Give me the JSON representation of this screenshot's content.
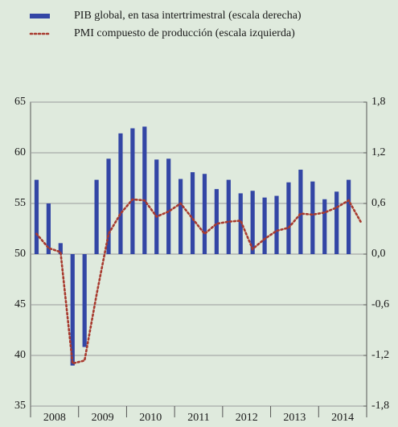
{
  "chart_data": {
    "type": "bar",
    "categories": [
      "2008",
      null,
      null,
      null,
      "2009",
      null,
      null,
      null,
      "2010",
      null,
      null,
      null,
      "2011",
      null,
      null,
      null,
      "2012",
      null,
      null,
      null,
      "2013",
      null,
      null,
      null,
      "2014",
      null,
      null,
      null
    ],
    "series": [
      {
        "name": "PIB global, en tasa intertrimestral (escala derecha)",
        "color": "#3346a5",
        "axis": "y2",
        "type": "bar",
        "values": [
          0.88,
          0.6,
          0.13,
          -1.32,
          -1.1,
          0.88,
          1.13,
          1.43,
          1.49,
          1.51,
          1.12,
          1.13,
          0.89,
          0.97,
          0.95,
          0.77,
          0.88,
          0.72,
          0.75,
          0.67,
          0.69,
          0.85,
          1.0,
          0.86,
          0.65,
          0.74,
          0.88,
          null
        ]
      },
      {
        "name": "PMI compuesto de producción (escala izquierda)",
        "color": "#a83a2e",
        "type": "line",
        "values": [
          52.0,
          50.6,
          50.2,
          39.2,
          39.5,
          46.0,
          52.0,
          54.0,
          55.4,
          55.3,
          53.7,
          54.2,
          55.0,
          53.5,
          52.0,
          53.0,
          53.2,
          53.3,
          50.5,
          51.5,
          52.3,
          52.6,
          54.0,
          53.9,
          54.1,
          54.6,
          55.3,
          53.2
        ]
      }
    ],
    "ylim": [
      35,
      65
    ],
    "yticks": [
      35,
      40,
      45,
      50,
      55,
      60,
      65
    ],
    "y2lim": [
      -1.8,
      1.8
    ],
    "y2ticks": [
      {
        "value": -1.8,
        "label": "-1,8"
      },
      {
        "value": -1.2,
        "label": "-1,2"
      },
      {
        "value": -0.6,
        "label": "-0,6"
      },
      {
        "value": 0.0,
        "label": "0,0"
      },
      {
        "value": 0.6,
        "label": "0,6"
      },
      {
        "value": 1.2,
        "label": "1,2"
      },
      {
        "value": 1.8,
        "label": "1,8"
      }
    ],
    "grid": true,
    "legend": "top"
  }
}
